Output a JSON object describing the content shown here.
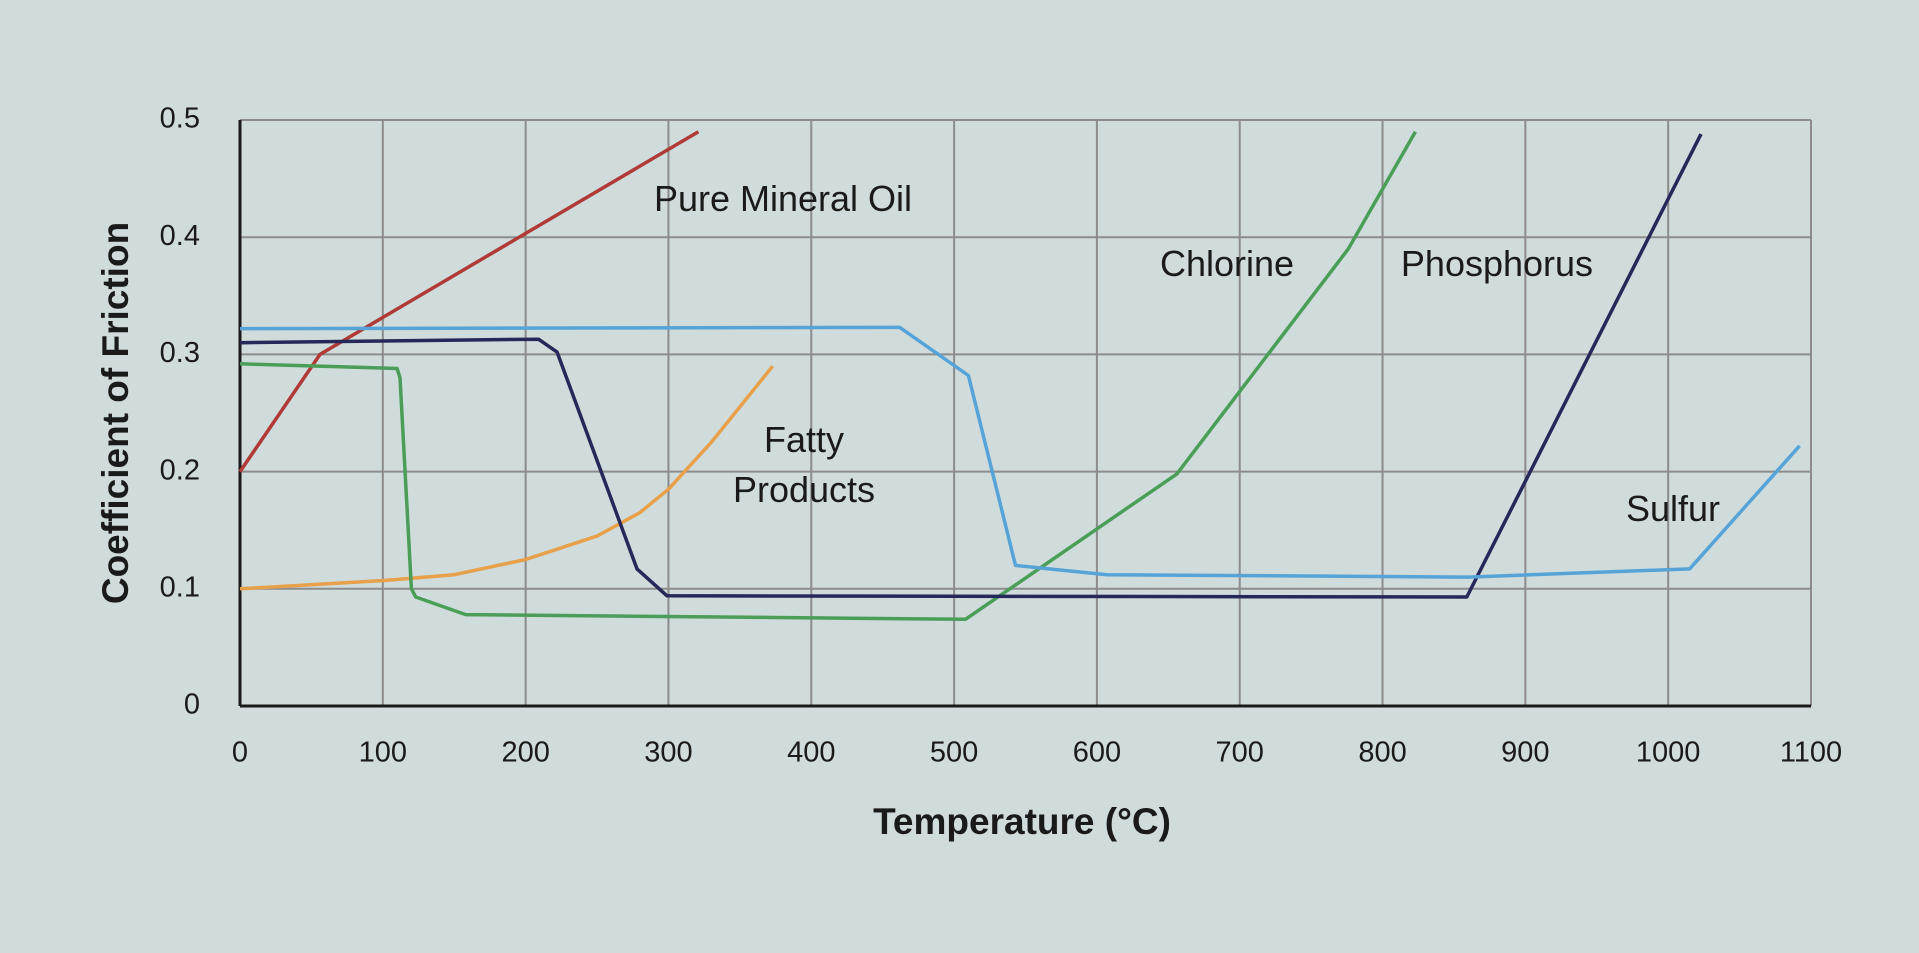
{
  "chart_data": {
    "type": "line",
    "x_label": "Temperature (°C)",
    "y_label": "Coefficient of Friction",
    "xlim": [
      0,
      1100
    ],
    "xticks": [
      0,
      100,
      200,
      300,
      400,
      500,
      600,
      700,
      800,
      900,
      1000,
      1100
    ],
    "ylim": [
      0,
      0.5
    ],
    "yticks": [
      0,
      0.1,
      0.2,
      0.3,
      0.4,
      0.5
    ],
    "grid": true,
    "series": [
      {
        "name": "Pure Mineral Oil",
        "color": "#b03a37",
        "x": [
          0,
          56,
          321
        ],
        "values": [
          0.2,
          0.3,
          0.49
        ]
      },
      {
        "name": "Fatty Products",
        "color": "#e8a04a",
        "x": [
          0,
          100,
          150,
          200,
          250,
          280,
          300,
          330,
          373
        ],
        "values": [
          0.1,
          0.107,
          0.112,
          0.125,
          0.145,
          0.165,
          0.185,
          0.225,
          0.29
        ]
      },
      {
        "name": "Chlorine",
        "color": "#4a9e58",
        "x": [
          0,
          110,
          112,
          120,
          123,
          158,
          508,
          656,
          776,
          823
        ],
        "values": [
          0.292,
          0.288,
          0.28,
          0.1,
          0.093,
          0.078,
          0.074,
          0.198,
          0.39,
          0.49
        ]
      },
      {
        "name": "Phosphorus",
        "color": "#27285a",
        "x": [
          0,
          209,
          222,
          278,
          299,
          859,
          1023
        ],
        "values": [
          0.31,
          0.313,
          0.302,
          0.117,
          0.094,
          0.093,
          0.488
        ]
      },
      {
        "name": "Sulfur",
        "color": "#56a3d8",
        "x": [
          0,
          462,
          510,
          543,
          607,
          860,
          1015,
          1092
        ],
        "values": [
          0.322,
          0.323,
          0.282,
          0.12,
          0.112,
          0.11,
          0.117,
          0.222
        ]
      }
    ]
  }
}
